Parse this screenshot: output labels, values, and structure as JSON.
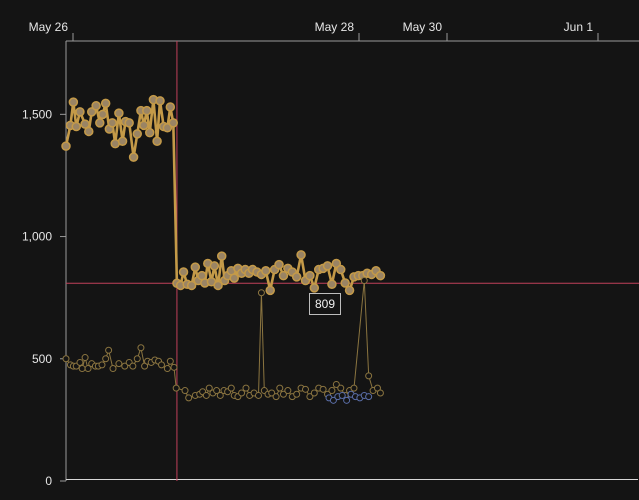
{
  "chart_data": {
    "type": "line",
    "title": "",
    "xlabel": "",
    "ylabel": "",
    "x_tick_labels": [
      "May 26",
      "May 28",
      "May 30",
      "Jun 1"
    ],
    "y_tick_labels": [
      "0",
      "500",
      "1,000",
      "1,500"
    ],
    "y_ticks": [
      0,
      500,
      1000,
      1500
    ],
    "ylim": [
      0,
      1800
    ],
    "x_unit": "days since May 26",
    "xlim": [
      0,
      7.8
    ],
    "grid": false,
    "series": [
      {
        "color": "#c49a48",
        "style": "thick-line-with-markers",
        "points": [
          [
            0.0,
            1370
          ],
          [
            0.06,
            1455
          ],
          [
            0.1,
            1550
          ],
          [
            0.14,
            1450
          ],
          [
            0.19,
            1510
          ],
          [
            0.26,
            1460
          ],
          [
            0.31,
            1430
          ],
          [
            0.35,
            1510
          ],
          [
            0.41,
            1535
          ],
          [
            0.46,
            1465
          ],
          [
            0.5,
            1500
          ],
          [
            0.54,
            1545
          ],
          [
            0.59,
            1440
          ],
          [
            0.63,
            1465
          ],
          [
            0.67,
            1380
          ],
          [
            0.72,
            1505
          ],
          [
            0.77,
            1390
          ],
          [
            0.81,
            1470
          ],
          [
            0.86,
            1465
          ],
          [
            0.92,
            1325
          ],
          [
            0.97,
            1420
          ],
          [
            1.02,
            1515
          ],
          [
            1.06,
            1455
          ],
          [
            1.1,
            1515
          ],
          [
            1.14,
            1425
          ],
          [
            1.19,
            1560
          ],
          [
            1.24,
            1390
          ],
          [
            1.28,
            1555
          ],
          [
            1.33,
            1450
          ],
          [
            1.38,
            1445
          ],
          [
            1.42,
            1530
          ],
          [
            1.46,
            1465
          ],
          [
            1.51,
            809
          ],
          [
            1.56,
            800
          ],
          [
            1.6,
            855
          ],
          [
            1.65,
            805
          ],
          [
            1.71,
            800
          ],
          [
            1.76,
            875
          ],
          [
            1.8,
            820
          ],
          [
            1.85,
            840
          ],
          [
            1.89,
            810
          ],
          [
            1.93,
            890
          ],
          [
            1.98,
            815
          ],
          [
            2.02,
            880
          ],
          [
            2.07,
            800
          ],
          [
            2.12,
            920
          ],
          [
            2.16,
            820
          ],
          [
            2.2,
            840
          ],
          [
            2.25,
            860
          ],
          [
            2.29,
            830
          ],
          [
            2.34,
            870
          ],
          [
            2.39,
            850
          ],
          [
            2.44,
            865
          ],
          [
            2.49,
            850
          ],
          [
            2.54,
            865
          ],
          [
            2.6,
            855
          ],
          [
            2.66,
            845
          ],
          [
            2.72,
            860
          ],
          [
            2.78,
            780
          ],
          [
            2.84,
            865
          ],
          [
            2.9,
            885
          ],
          [
            2.96,
            840
          ],
          [
            3.02,
            870
          ],
          [
            3.08,
            855
          ],
          [
            3.14,
            835
          ],
          [
            3.2,
            925
          ],
          [
            3.26,
            820
          ],
          [
            3.32,
            840
          ],
          [
            3.38,
            790
          ],
          [
            3.44,
            865
          ],
          [
            3.5,
            870
          ],
          [
            3.56,
            880
          ],
          [
            3.62,
            805
          ],
          [
            3.68,
            890
          ],
          [
            3.74,
            865
          ],
          [
            3.8,
            810
          ],
          [
            3.86,
            780
          ],
          [
            3.92,
            835
          ],
          [
            3.98,
            840
          ],
          [
            4.04,
            840
          ],
          [
            4.1,
            850
          ],
          [
            4.16,
            845
          ],
          [
            4.22,
            860
          ],
          [
            4.28,
            840
          ]
        ]
      },
      {
        "color": "#8b7540",
        "style": "thin-line-with-hollow-markers",
        "points": [
          [
            0.0,
            500
          ],
          [
            0.06,
            475
          ],
          [
            0.1,
            470
          ],
          [
            0.14,
            470
          ],
          [
            0.19,
            485
          ],
          [
            0.22,
            460
          ],
          [
            0.26,
            505
          ],
          [
            0.3,
            460
          ],
          [
            0.35,
            480
          ],
          [
            0.4,
            470
          ],
          [
            0.44,
            470
          ],
          [
            0.49,
            475
          ],
          [
            0.54,
            500
          ],
          [
            0.58,
            535
          ],
          [
            0.64,
            460
          ],
          [
            0.72,
            480
          ],
          [
            0.8,
            470
          ],
          [
            0.86,
            485
          ],
          [
            0.91,
            470
          ],
          [
            0.97,
            500
          ],
          [
            1.02,
            545
          ],
          [
            1.07,
            470
          ],
          [
            1.11,
            490
          ],
          [
            1.16,
            485
          ],
          [
            1.21,
            495
          ],
          [
            1.26,
            490
          ],
          [
            1.3,
            475
          ],
          [
            1.38,
            460
          ],
          [
            1.42,
            490
          ],
          [
            1.47,
            465
          ],
          [
            1.5,
            380
          ],
          [
            1.62,
            370
          ],
          [
            1.67,
            340
          ],
          [
            1.76,
            350
          ],
          [
            1.82,
            355
          ],
          [
            1.86,
            365
          ],
          [
            1.91,
            350
          ],
          [
            1.95,
            380
          ],
          [
            2.0,
            360
          ],
          [
            2.05,
            370
          ],
          [
            2.1,
            350
          ],
          [
            2.15,
            370
          ],
          [
            2.2,
            365
          ],
          [
            2.25,
            380
          ],
          [
            2.29,
            350
          ],
          [
            2.34,
            345
          ],
          [
            2.39,
            360
          ],
          [
            2.45,
            380
          ],
          [
            2.5,
            350
          ],
          [
            2.56,
            360
          ],
          [
            2.62,
            350
          ],
          [
            2.66,
            770
          ],
          [
            2.7,
            370
          ],
          [
            2.75,
            355
          ],
          [
            2.8,
            360
          ],
          [
            2.86,
            345
          ],
          [
            2.91,
            380
          ],
          [
            2.96,
            355
          ],
          [
            3.02,
            370
          ],
          [
            3.08,
            345
          ],
          [
            3.14,
            355
          ],
          [
            3.2,
            380
          ],
          [
            3.26,
            375
          ],
          [
            3.32,
            345
          ],
          [
            3.38,
            360
          ],
          [
            3.44,
            380
          ],
          [
            3.5,
            375
          ],
          [
            3.56,
            355
          ],
          [
            3.62,
            370
          ],
          [
            3.68,
            395
          ],
          [
            3.74,
            380
          ],
          [
            3.8,
            350
          ],
          [
            3.86,
            370
          ],
          [
            3.92,
            380
          ],
          [
            4.06,
            820
          ],
          [
            4.12,
            430
          ],
          [
            4.18,
            370
          ],
          [
            4.24,
            380
          ],
          [
            4.28,
            360
          ]
        ]
      },
      {
        "color": "#5a6ea8",
        "style": "thin-line-with-hollow-markers",
        "points": [
          [
            3.58,
            340
          ],
          [
            3.64,
            330
          ],
          [
            3.7,
            345
          ],
          [
            3.76,
            350
          ],
          [
            3.82,
            330
          ],
          [
            3.88,
            355
          ],
          [
            3.94,
            345
          ],
          [
            4.0,
            340
          ],
          [
            4.06,
            350
          ],
          [
            4.12,
            345
          ]
        ]
      }
    ],
    "crosshair": {
      "x": 1.51,
      "y": 809,
      "label": "809"
    }
  }
}
